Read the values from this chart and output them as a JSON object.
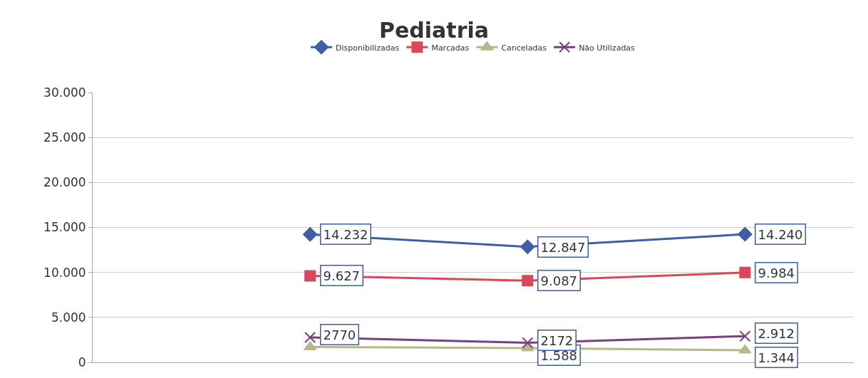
{
  "chart_data": {
    "type": "line",
    "title": "Pediatria",
    "categories": [
      null,
      null,
      null,
      null
    ],
    "series": [
      {
        "name": "Disponibilizadas",
        "color": "#3f5ea8",
        "marker": "diamond",
        "values": [
          null,
          14232,
          12847,
          14240
        ],
        "value_labels": [
          null,
          "14.232",
          "12.847",
          "14.240"
        ]
      },
      {
        "name": "Marcadas",
        "color": "#d9475a",
        "marker": "square",
        "values": [
          null,
          9627,
          9087,
          9984
        ],
        "value_labels": [
          null,
          "9.627",
          "9.087",
          "9.984"
        ]
      },
      {
        "name": "Canceladas",
        "color": "#b5b98a",
        "marker": "triangle",
        "values": [
          null,
          1700,
          1588,
          1344
        ],
        "value_labels": [
          null,
          null,
          "1.588",
          "1.344"
        ]
      },
      {
        "name": "Não Utilizadas",
        "color": "#7b3f7a",
        "marker": "cross",
        "values": [
          null,
          2770,
          2172,
          2912
        ],
        "value_labels": [
          null,
          "2770",
          "2172",
          "2.912"
        ]
      }
    ],
    "ylim": [
      0,
      30000
    ],
    "yticks": [
      {
        "value": 0,
        "label": "0"
      },
      {
        "value": 5000,
        "label": "5.000"
      },
      {
        "value": 10000,
        "label": "10.000"
      },
      {
        "value": 15000,
        "label": "15.000"
      },
      {
        "value": 20000,
        "label": "20.000"
      },
      {
        "value": 25000,
        "label": "25.000"
      },
      {
        "value": 30000,
        "label": "30.000"
      }
    ],
    "grid": "y",
    "legend": "top",
    "tick_labels": "y"
  }
}
